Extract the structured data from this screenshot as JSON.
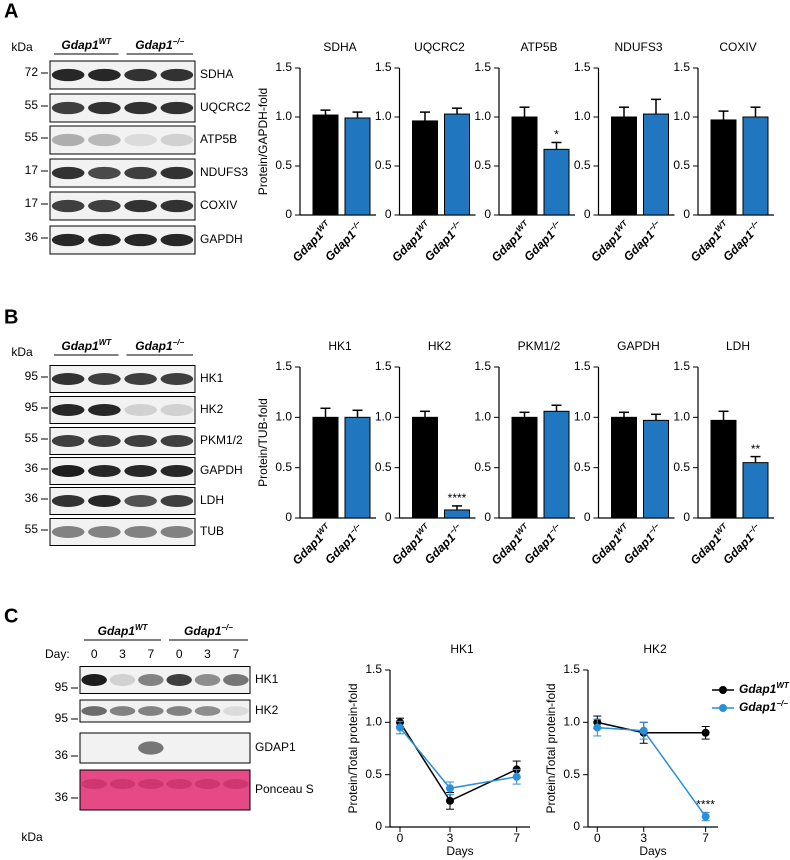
{
  "panel_labels": [
    "A",
    "B",
    "C"
  ],
  "blots": [
    {
      "kda": "kDa",
      "groups": [
        {
          "name": "Gdap1",
          "sup": "WT"
        },
        {
          "name": "Gdap1",
          "sup": "−/−"
        }
      ],
      "rows": [
        {
          "marker": "72",
          "protein": "SDHA"
        },
        {
          "marker": "55",
          "protein": "UQCRC2"
        },
        {
          "marker": "55",
          "protein": "ATP5B"
        },
        {
          "marker": "17",
          "protein": "NDUFS3"
        },
        {
          "marker": "17",
          "protein": "COXIV"
        },
        {
          "marker": "36",
          "protein": "GAPDH"
        }
      ]
    },
    {
      "kda": "kDa",
      "groups": [
        {
          "name": "Gdap1",
          "sup": "WT"
        },
        {
          "name": "Gdap1",
          "sup": "−/−"
        }
      ],
      "rows": [
        {
          "marker": "95",
          "protein": "HK1"
        },
        {
          "marker": "95",
          "protein": "HK2"
        },
        {
          "marker": "55",
          "protein": "PKM1/2"
        },
        {
          "marker": "36",
          "protein": "GAPDH"
        },
        {
          "marker": "36",
          "protein": "LDH"
        },
        {
          "marker": "55",
          "protein": "TUB"
        }
      ]
    },
    {
      "kda": "kDa",
      "day_label": "Day:",
      "days": [
        "0",
        "3",
        "7",
        "0",
        "3",
        "7"
      ],
      "groups": [
        {
          "name": "Gdap1",
          "sup": "WT"
        },
        {
          "name": "Gdap1",
          "sup": "−/−"
        }
      ],
      "rows": [
        {
          "marker": "95",
          "protein": "HK1"
        },
        {
          "marker": "95",
          "protein": "HK2"
        },
        {
          "marker": "36",
          "protein": "GDAP1"
        },
        {
          "marker": "36",
          "protein": "Ponceau S"
        }
      ]
    }
  ],
  "chart_data": [
    {
      "type": "bar",
      "title": "SDHA",
      "ylabel": "Protein/GAPDH-fold",
      "categories": [
        "Gdap1",
        "Gdap1"
      ],
      "category_superscripts": [
        "WT",
        "−/−"
      ],
      "values": [
        1.02,
        0.99
      ],
      "errors": [
        0.05,
        0.06
      ],
      "colors": [
        "#000000",
        "#2176c0"
      ],
      "ylim": [
        0,
        1.5
      ],
      "yticks": [
        0,
        0.5,
        {
          "value": 1,
          "label": "1.0"
        },
        1.5
      ]
    },
    {
      "type": "bar",
      "title": "UQCRC2",
      "categories": [
        "Gdap1",
        "Gdap1"
      ],
      "category_superscripts": [
        "WT",
        "−/−"
      ],
      "values": [
        0.96,
        1.03
      ],
      "errors": [
        0.09,
        0.06
      ],
      "colors": [
        "#000000",
        "#2176c0"
      ],
      "ylim": [
        0,
        1.5
      ],
      "yticks": [
        0,
        0.5,
        {
          "value": 1,
          "label": "1.0"
        },
        1.5
      ]
    },
    {
      "type": "bar",
      "title": "ATP5B",
      "categories": [
        "Gdap1",
        "Gdap1"
      ],
      "category_superscripts": [
        "WT",
        "−/−"
      ],
      "values": [
        1.0,
        0.67
      ],
      "errors": [
        0.1,
        0.07
      ],
      "significance": [
        null,
        "*"
      ],
      "colors": [
        "#000000",
        "#2176c0"
      ],
      "ylim": [
        0,
        1.5
      ],
      "yticks": [
        0,
        0.5,
        {
          "value": 1,
          "label": "1.0"
        },
        1.5
      ]
    },
    {
      "type": "bar",
      "title": "NDUFS3",
      "categories": [
        "Gdap1",
        "Gdap1"
      ],
      "category_superscripts": [
        "WT",
        "−/−"
      ],
      "values": [
        1.0,
        1.03
      ],
      "errors": [
        0.1,
        0.15
      ],
      "colors": [
        "#000000",
        "#2176c0"
      ],
      "ylim": [
        0,
        1.5
      ],
      "yticks": [
        0,
        0.5,
        {
          "value": 1,
          "label": "1.0"
        },
        1.5
      ]
    },
    {
      "type": "bar",
      "title": "COXIV",
      "categories": [
        "Gdap1",
        "Gdap1"
      ],
      "category_superscripts": [
        "WT",
        "−/−"
      ],
      "values": [
        0.97,
        1.0
      ],
      "errors": [
        0.09,
        0.1
      ],
      "colors": [
        "#000000",
        "#2176c0"
      ],
      "ylim": [
        0,
        1.5
      ],
      "yticks": [
        0,
        0.5,
        {
          "value": 1,
          "label": "1.0"
        },
        1.5
      ]
    },
    {
      "type": "bar",
      "title": "HK1",
      "ylabel": "Protein/TUB-fold",
      "categories": [
        "Gdap1",
        "Gdap1"
      ],
      "category_superscripts": [
        "WT",
        "−/−"
      ],
      "values": [
        1.0,
        1.0
      ],
      "errors": [
        0.09,
        0.07
      ],
      "colors": [
        "#000000",
        "#2176c0"
      ],
      "ylim": [
        0,
        1.5
      ],
      "yticks": [
        0,
        0.5,
        {
          "value": 1,
          "label": "1.0"
        },
        1.5
      ]
    },
    {
      "type": "bar",
      "title": "HK2",
      "categories": [
        "Gdap1",
        "Gdap1"
      ],
      "category_superscripts": [
        "WT",
        "−/−"
      ],
      "values": [
        1.0,
        0.08
      ],
      "errors": [
        0.06,
        0.04
      ],
      "significance": [
        null,
        "****"
      ],
      "colors": [
        "#000000",
        "#2176c0"
      ],
      "ylim": [
        0,
        1.5
      ],
      "yticks": [
        0,
        0.5,
        {
          "value": 1,
          "label": "1.0"
        },
        1.5
      ]
    },
    {
      "type": "bar",
      "title": "PKM1/2",
      "categories": [
        "Gdap1",
        "Gdap1"
      ],
      "category_superscripts": [
        "WT",
        "−/−"
      ],
      "values": [
        1.0,
        1.06
      ],
      "errors": [
        0.05,
        0.06
      ],
      "colors": [
        "#000000",
        "#2176c0"
      ],
      "ylim": [
        0,
        1.5
      ],
      "yticks": [
        0,
        0.5,
        {
          "value": 1,
          "label": "1.0"
        },
        1.5
      ]
    },
    {
      "type": "bar",
      "title": "GAPDH",
      "categories": [
        "Gdap1",
        "Gdap1"
      ],
      "category_superscripts": [
        "WT",
        "−/−"
      ],
      "values": [
        1.0,
        0.97
      ],
      "errors": [
        0.05,
        0.06
      ],
      "colors": [
        "#000000",
        "#2176c0"
      ],
      "ylim": [
        0,
        1.5
      ],
      "yticks": [
        0,
        0.5,
        {
          "value": 1,
          "label": "1.0"
        },
        1.5
      ]
    },
    {
      "type": "bar",
      "title": "LDH",
      "categories": [
        "Gdap1",
        "Gdap1"
      ],
      "category_superscripts": [
        "WT",
        "−/−"
      ],
      "values": [
        0.97,
        0.55
      ],
      "errors": [
        0.09,
        0.06
      ],
      "significance": [
        null,
        "**"
      ],
      "colors": [
        "#000000",
        "#2176c0"
      ],
      "ylim": [
        0,
        1.5
      ],
      "yticks": [
        0,
        0.5,
        {
          "value": 1,
          "label": "1.0"
        },
        1.5
      ]
    },
    {
      "type": "line",
      "title": "HK1",
      "ylabel": "Protein/Total protein-fold",
      "xlabel": "Days",
      "x": [
        0,
        3,
        7
      ],
      "xlim": [
        -0.6,
        7.8
      ],
      "xticks": [
        0,
        3,
        7
      ],
      "ylim": [
        0,
        1.5
      ],
      "yticks": [
        0,
        0.5,
        {
          "value": 1,
          "label": "1.0"
        },
        1.5
      ],
      "series": [
        {
          "name": "Gdap1",
          "superscript": "WT",
          "color": "#000000",
          "values": [
            1.0,
            0.25,
            0.55
          ],
          "errors": [
            0.04,
            0.08,
            0.08
          ]
        },
        {
          "name": "Gdap1",
          "superscript": "−/−",
          "color": "#2a8fd6",
          "values": [
            0.95,
            0.37,
            0.48
          ],
          "errors": [
            0.06,
            0.06,
            0.07
          ]
        }
      ]
    },
    {
      "type": "line",
      "title": "HK2",
      "ylabel": "Protein/Total protein-fold",
      "xlabel": "Days",
      "x": [
        0,
        3,
        7
      ],
      "xlim": [
        -0.6,
        7.8
      ],
      "xticks": [
        0,
        3,
        7
      ],
      "ylim": [
        0,
        1.5
      ],
      "yticks": [
        0,
        0.5,
        {
          "value": 1,
          "label": "1.0"
        },
        1.5
      ],
      "annotation": "****",
      "legend": "right",
      "series": [
        {
          "name": "Gdap1",
          "superscript": "WT",
          "color": "#000000",
          "values": [
            1.0,
            0.9,
            0.9
          ],
          "errors": [
            0.06,
            0.1,
            0.06
          ]
        },
        {
          "name": "Gdap1",
          "superscript": "−/−",
          "color": "#2a8fd6",
          "values": [
            0.95,
            0.92,
            0.1
          ],
          "errors": [
            0.08,
            0.08,
            0.04
          ]
        }
      ]
    }
  ]
}
